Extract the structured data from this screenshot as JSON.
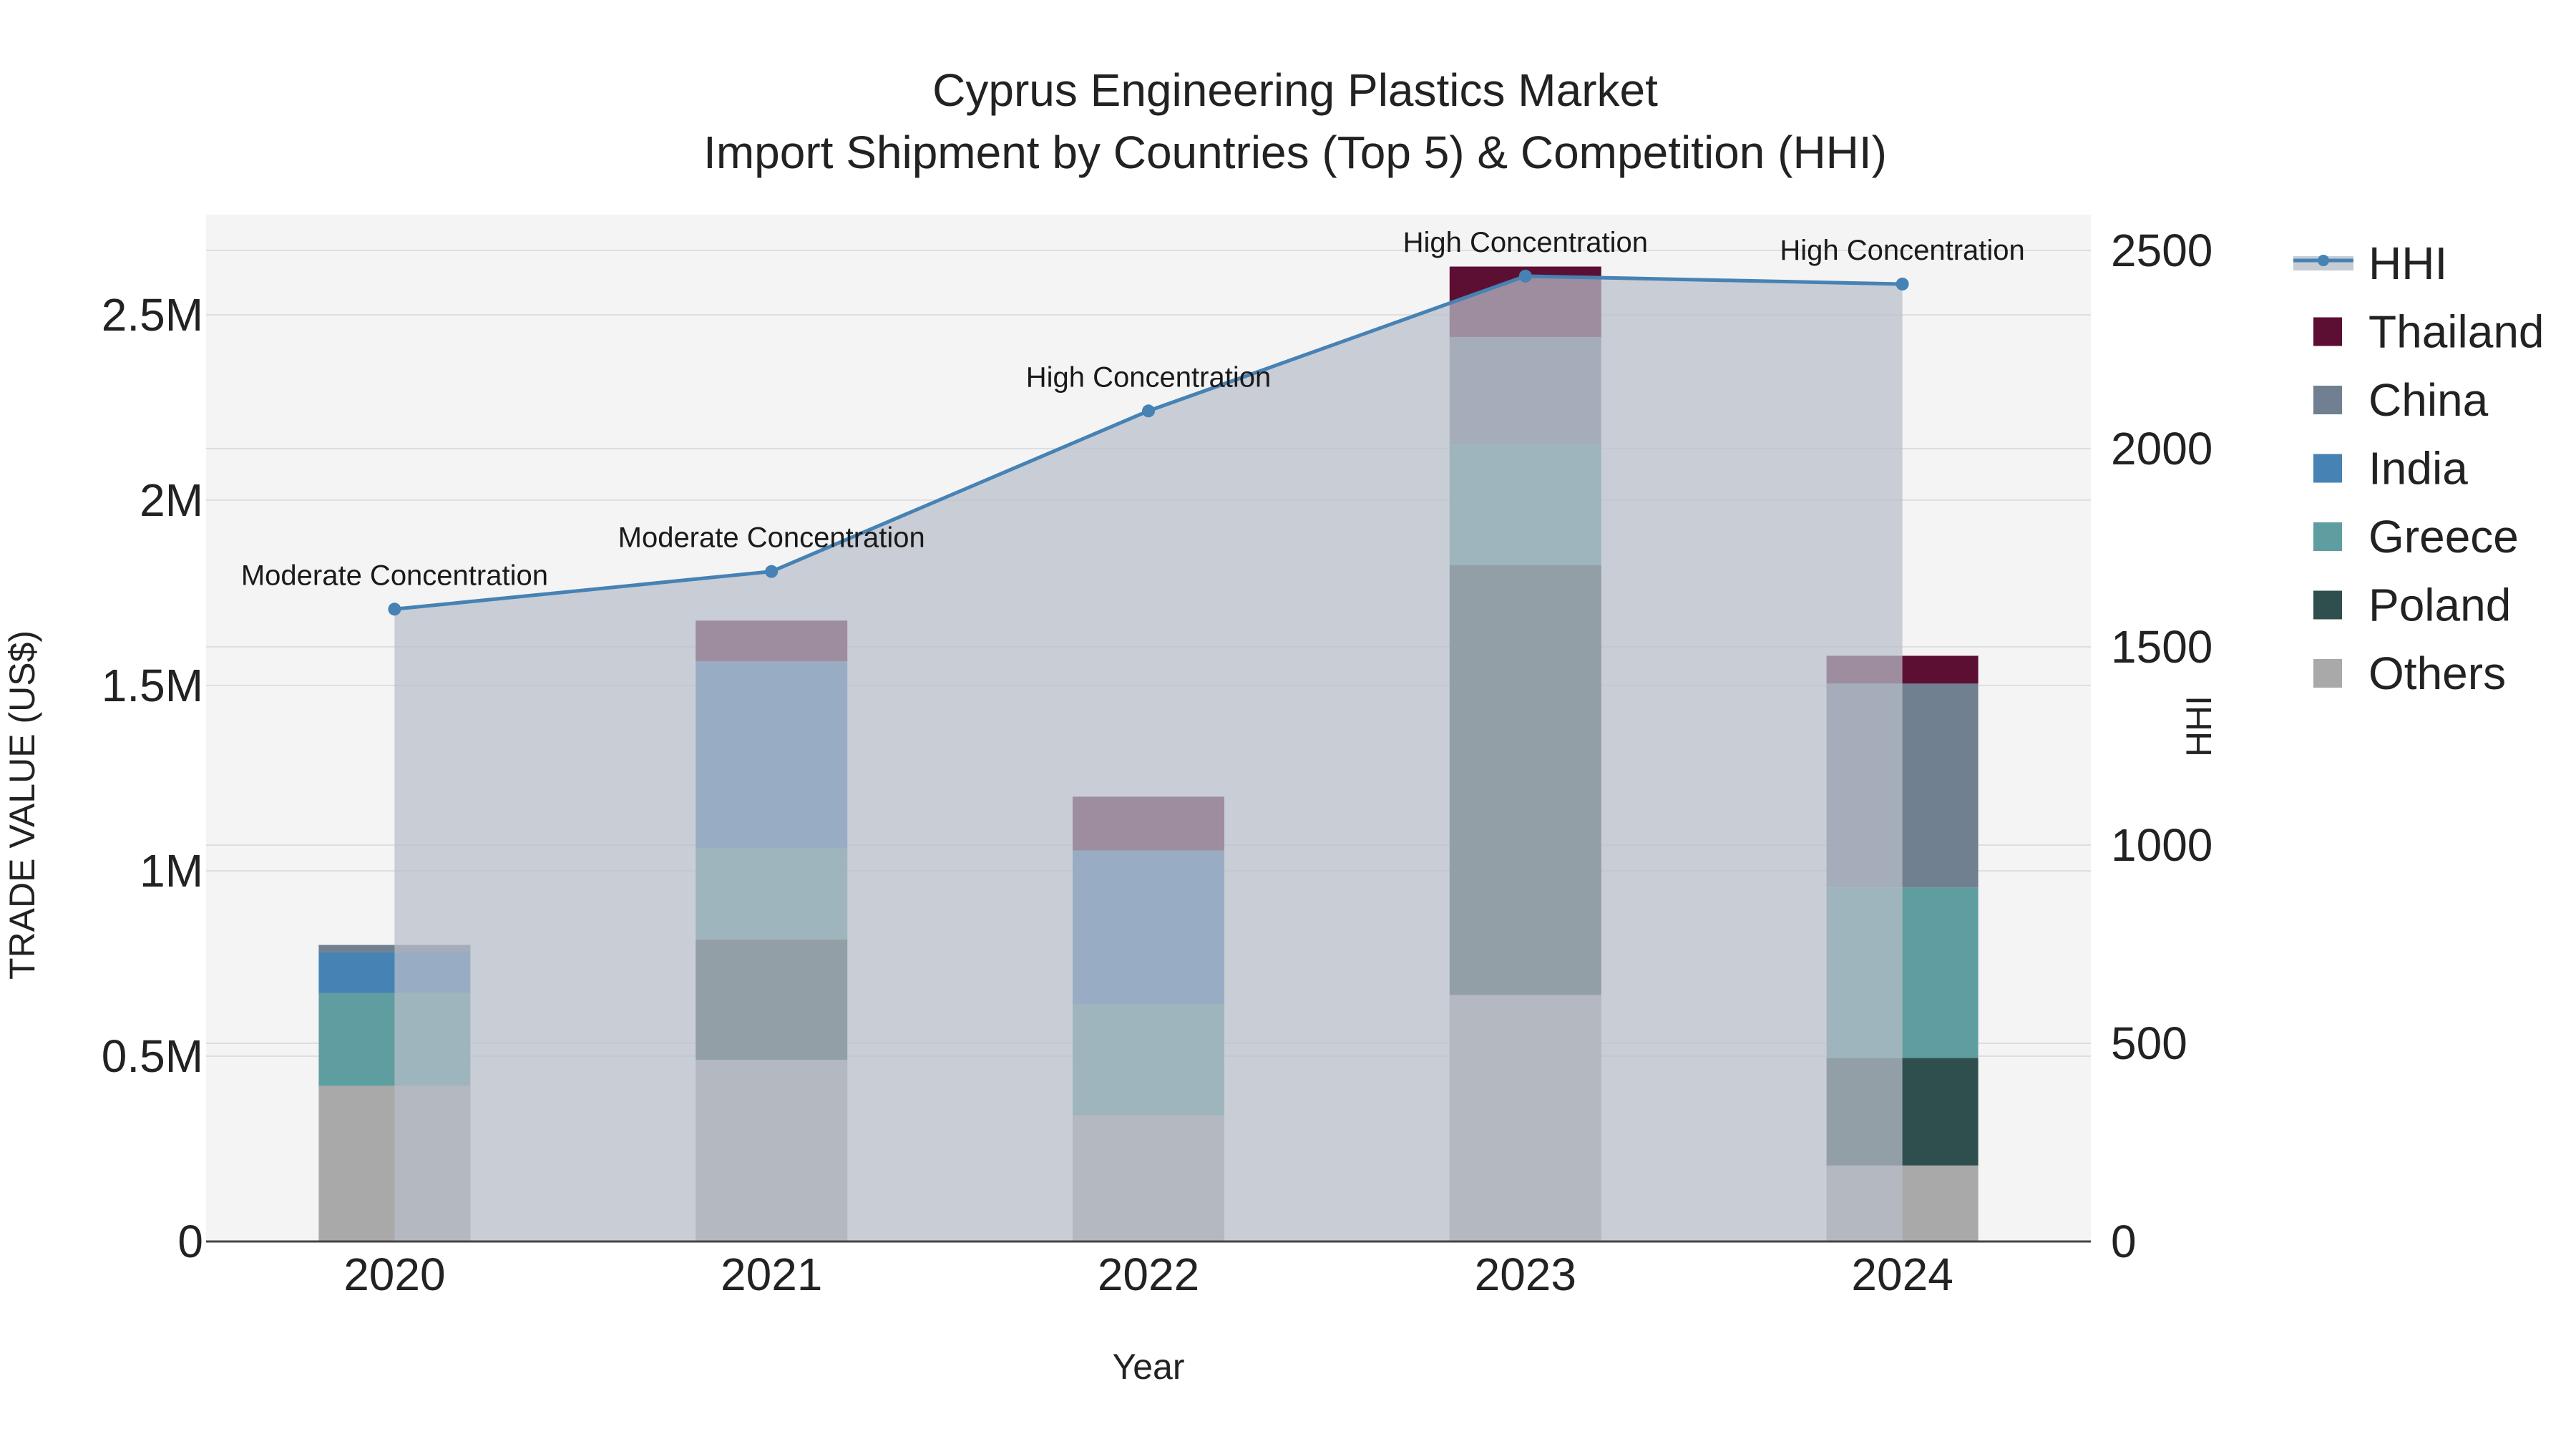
{
  "chart_data": {
    "type": "bar",
    "title_line1": "Cyprus Engineering Plastics Market",
    "title_line2": "Import Shipment by Countries (Top 5) & Competition (HHI)",
    "xlabel": "Year",
    "ylabel": "TRADE VALUE (US$)",
    "y2label": "HHI",
    "categories": [
      "2020",
      "2021",
      "2022",
      "2023",
      "2024"
    ],
    "ylim": [
      0,
      2770000
    ],
    "y2lim": [
      0,
      2590
    ],
    "y_ticks": [
      0,
      500000,
      1000000,
      1500000,
      2000000,
      2500000
    ],
    "y_tick_labels": [
      "0",
      "0.5M",
      "1M",
      "1.5M",
      "2M",
      "2.5M"
    ],
    "y2_ticks": [
      0,
      500,
      1000,
      1500,
      2000,
      2500
    ],
    "y2_tick_labels": [
      "0",
      "500",
      "1000",
      "1500",
      "2000",
      "2500"
    ],
    "series": [
      {
        "name": "Others",
        "color": "#a9a9a9",
        "values": [
          420000,
          490000,
          340000,
          665000,
          205000
        ]
      },
      {
        "name": "Poland",
        "color": "#2f4f4f",
        "values": [
          0,
          325000,
          0,
          1160000,
          290000
        ]
      },
      {
        "name": "Greece",
        "color": "#5f9ea0",
        "values": [
          250000,
          245000,
          300000,
          325000,
          460000
        ]
      },
      {
        "name": "India",
        "color": "#4682b4",
        "values": [
          110000,
          505000,
          415000,
          0,
          0
        ]
      },
      {
        "name": "China",
        "color": "#708090",
        "values": [
          20000,
          0,
          0,
          290000,
          550000
        ]
      },
      {
        "name": "Thailand",
        "color": "#5c0f33",
        "values": [
          0,
          110000,
          145000,
          190000,
          75000
        ]
      }
    ],
    "hhi": {
      "name": "HHI",
      "color": "#4682b4",
      "values": [
        1595,
        1690,
        2095,
        2435,
        2415
      ],
      "labels": [
        "Moderate Concentration",
        "Moderate Concentration",
        "High Concentration",
        "High Concentration",
        "High Concentration"
      ]
    },
    "legend_order": [
      "HHI",
      "Thailand",
      "China",
      "India",
      "Greece",
      "Poland",
      "Others"
    ],
    "legend_position": "right"
  },
  "colors": {
    "plot_bg": "#f4f4f4",
    "grid": "#dedede",
    "hhi_fill": "#b8bec9"
  }
}
